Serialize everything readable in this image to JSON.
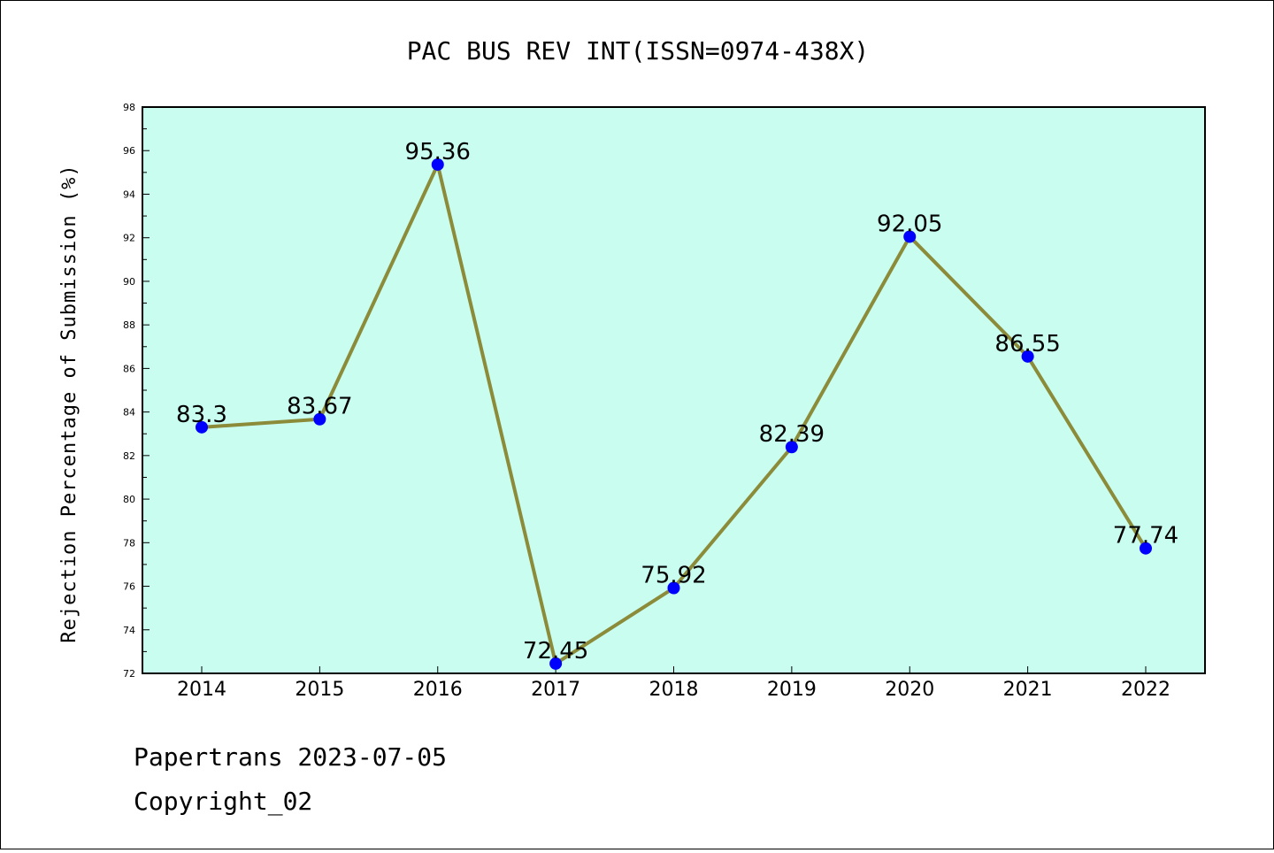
{
  "chart_data": {
    "type": "line",
    "title": "PAC BUS REV INT(ISSN=0974-438X)",
    "xlabel": "",
    "ylabel": "Rejection Percentage of Submission (%)",
    "categories": [
      "2014",
      "2015",
      "2016",
      "2017",
      "2018",
      "2019",
      "2020",
      "2021",
      "2022"
    ],
    "values": [
      83.3,
      83.67,
      95.36,
      72.45,
      75.92,
      82.39,
      92.05,
      86.55,
      77.74
    ],
    "data_labels": [
      "83.3",
      "83.67",
      "95.36",
      "72.45",
      "75.92",
      "82.39",
      "92.05",
      "86.55",
      "77.74"
    ],
    "ylim": [
      72,
      98
    ],
    "yticks": [
      72,
      74,
      76,
      78,
      80,
      82,
      84,
      86,
      88,
      90,
      92,
      94,
      96,
      98
    ],
    "grid": false,
    "legend": "none",
    "colors": {
      "plot_background": "#c8fdf0",
      "line": "#8b8b3a",
      "marker": "#0000ff"
    }
  },
  "footer": {
    "line1": "Papertrans 2023-07-05",
    "line2": "Copyright_02"
  }
}
